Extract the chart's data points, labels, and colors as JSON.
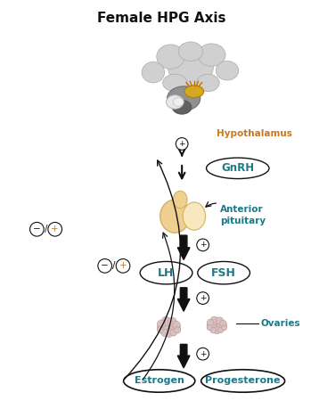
{
  "title": "Female HPG Axis",
  "title_fontsize": 11,
  "title_fontweight": "bold",
  "bg_color": "#ffffff",
  "teal": "#1a7a8a",
  "orange": "#c87820",
  "black": "#111111",
  "red": "#cc2222",
  "label_hypothalamus": "Hypothalamus",
  "label_gnrh": "GnRH",
  "label_anterior_pit": "Anterior\npituitary",
  "label_lh": "LH",
  "label_fsh": "FSH",
  "label_ovaries": "Ovaries",
  "label_estrogen": "Estrogen",
  "label_progesterone": "Progesterone",
  "figsize": [
    3.49,
    4.5
  ],
  "dpi": 100,
  "brain_color": "#d0d0d0",
  "brain_inner_color": "#b8b8b8",
  "brain_dark": "#606060",
  "hypo_gold": "#d4a820",
  "pit_color": "#f0d090",
  "pit_dark": "#d4b060",
  "ovary_color": "#d8c0c0",
  "ovary_edge": "#b89898"
}
